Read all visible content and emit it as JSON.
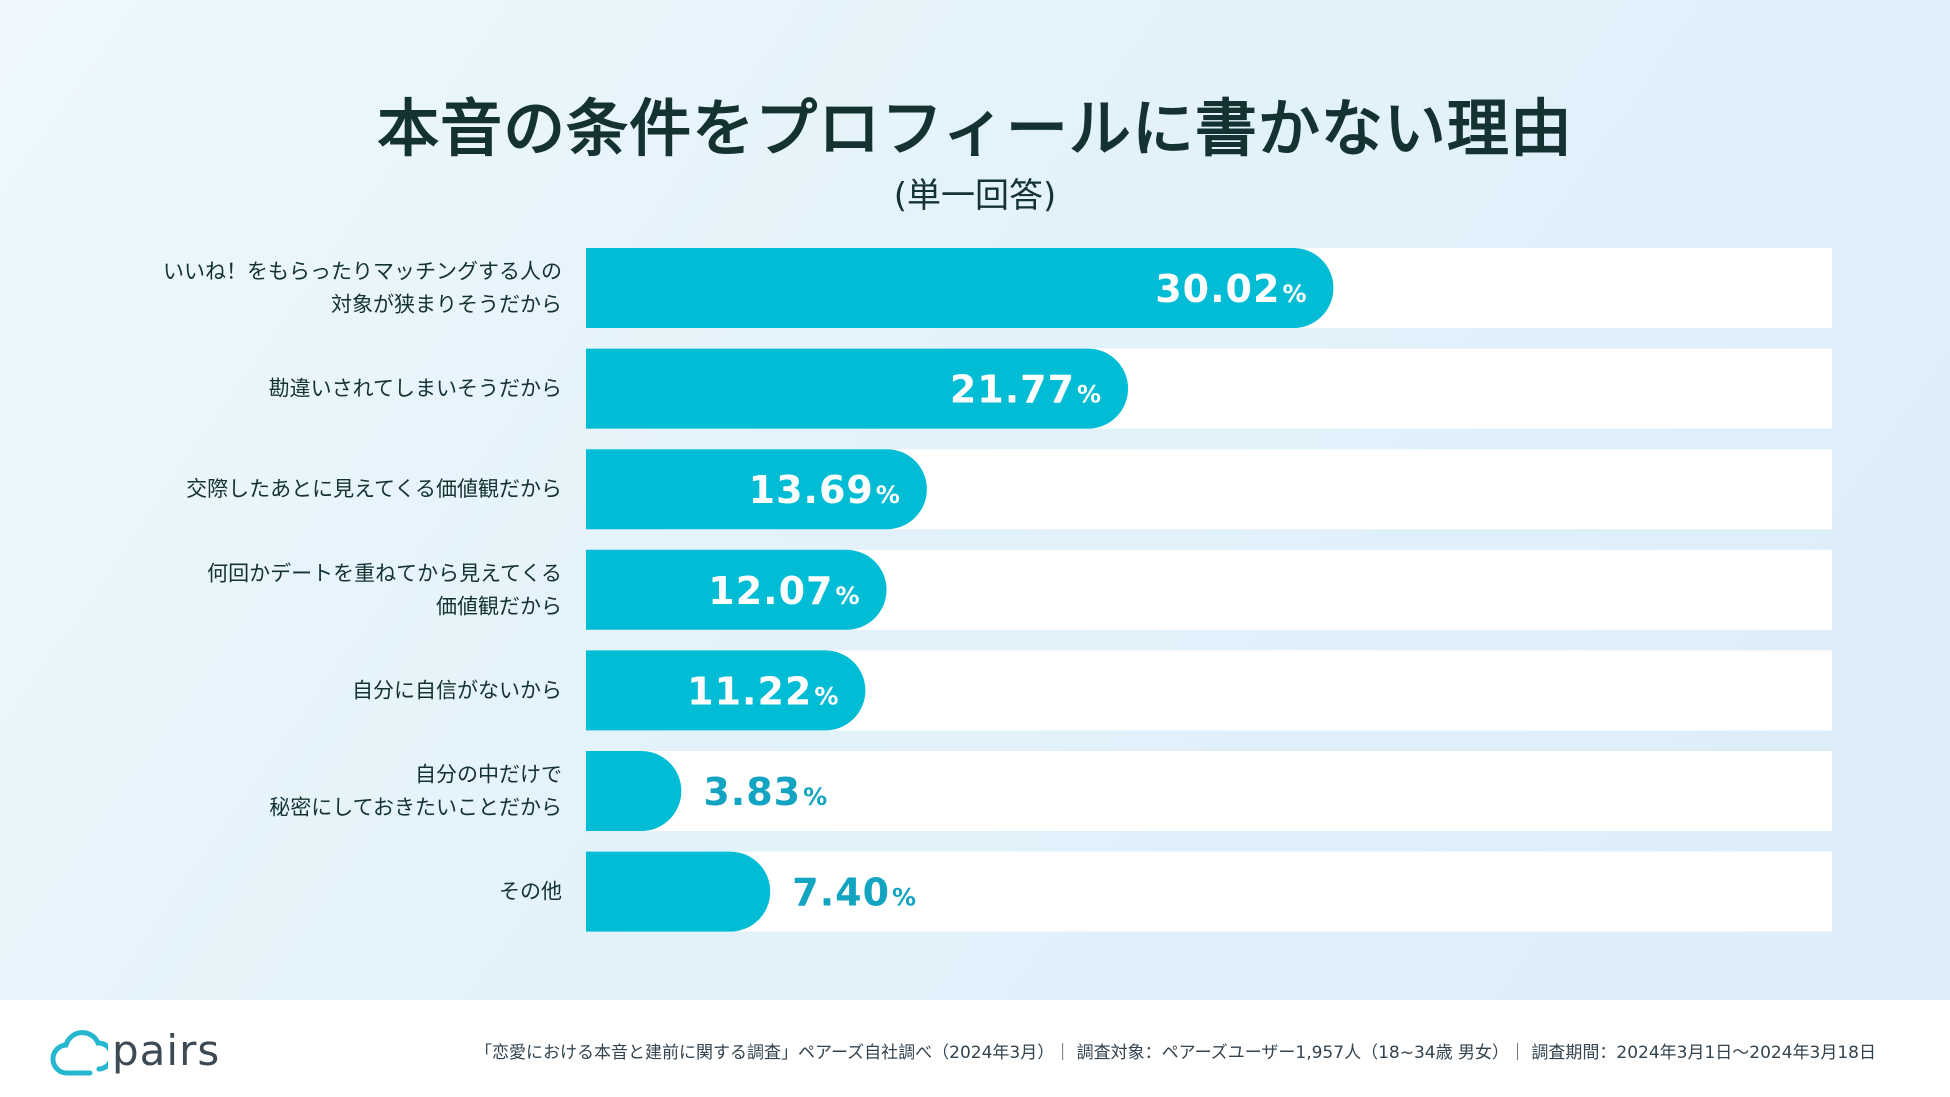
{
  "title": "本音の条件をプロフィールに書かない理由",
  "subtitle": "(単一回答)",
  "colors": {
    "bar": "#00bcd4",
    "bar_track": "#ffffff",
    "label_inside": "#ffffff",
    "label_outside": "#13a4c2"
  },
  "chart_data": {
    "type": "bar",
    "orientation": "horizontal",
    "title": "本音の条件をプロフィールに書かない理由",
    "subtitle": "(単一回答)",
    "unit": "%",
    "xlim": [
      0,
      100
    ],
    "categories": [
      [
        "いいね！をもらったりマッチングする人の",
        "対象が狭まりそうだから"
      ],
      [
        "勘違いされてしまいそうだから"
      ],
      [
        "交際したあとに見えてくる価値観だから"
      ],
      [
        "何回かデートを重ねてから見えてくる",
        "価値観だから"
      ],
      [
        "自分に自信がないから"
      ],
      [
        "自分の中だけで",
        "秘密にしておきたいことだから"
      ],
      [
        "その他"
      ]
    ],
    "values": [
      30.02,
      21.77,
      13.69,
      12.07,
      11.22,
      3.83,
      7.4
    ],
    "value_labels": [
      "30.02",
      "21.77",
      "13.69",
      "12.07",
      "11.22",
      "3.83",
      "7.40"
    ]
  },
  "footer": {
    "logo_text": "pairs",
    "source": "「恋愛における本音と建前に関する調査」ペアーズ自社調べ（2024年3月）｜ 調査対象：ペアーズユーザー1,957人（18~34歳 男女）｜ 調査期間：2024年3月1日～2024年3月18日"
  }
}
